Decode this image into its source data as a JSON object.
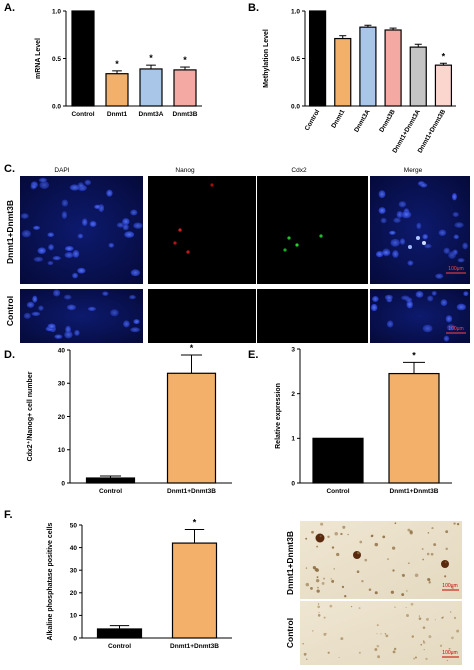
{
  "panel_labels": {
    "a": "A.",
    "b": "B.",
    "c": "C.",
    "d": "D.",
    "e": "E.",
    "f": "F."
  },
  "significance_mark": "*",
  "chart_data": [
    {
      "id": "A",
      "type": "bar",
      "ylabel": "mRNA Level",
      "ylim": [
        0,
        1.0
      ],
      "yticks": [
        0,
        0.5,
        1.0
      ],
      "categories": [
        "Control",
        "Dnmt1",
        "Dnmt3A",
        "Dnmt3B"
      ],
      "values": [
        1.0,
        0.34,
        0.39,
        0.38
      ],
      "errors": [
        0,
        0.03,
        0.04,
        0.03
      ],
      "significant": [
        false,
        true,
        true,
        true
      ],
      "colors": [
        "#000000",
        "#f2b06a",
        "#a9c6e8",
        "#f4a9a2"
      ]
    },
    {
      "id": "B",
      "type": "bar",
      "ylabel": "Methylation Level",
      "ylim": [
        0,
        1.0
      ],
      "yticks": [
        0,
        0.5,
        1.0
      ],
      "categories": [
        "Control",
        "Dnmt1",
        "Dnmt3A",
        "Dnmt3B",
        "Dnmt1+Dnmt3A",
        "Dnmt1+Dnmt3B"
      ],
      "values": [
        1.0,
        0.71,
        0.83,
        0.8,
        0.62,
        0.43
      ],
      "errors": [
        0,
        0.03,
        0.02,
        0.02,
        0.03,
        0.02
      ],
      "significant": [
        false,
        false,
        false,
        false,
        false,
        true
      ],
      "colors": [
        "#000000",
        "#f2b06a",
        "#a9c6e8",
        "#f4a9a2",
        "#c4c4c4",
        "#fbd6cf"
      ]
    },
    {
      "id": "D",
      "type": "bar",
      "ylabel": "Cdx2⁺/Nanog+ cell number",
      "ylim": [
        0,
        40
      ],
      "yticks": [
        0,
        10,
        20,
        30,
        40
      ],
      "categories": [
        "Control",
        "Dnmt1+Dnmt3B"
      ],
      "values": [
        1.5,
        33
      ],
      "errors": [
        0.6,
        5.5
      ],
      "significant": [
        false,
        true
      ],
      "colors": [
        "#000000",
        "#f2b06a"
      ]
    },
    {
      "id": "E",
      "type": "bar",
      "ylabel": "Relative expression",
      "ylim": [
        0,
        3
      ],
      "yticks": [
        0,
        1,
        2,
        3
      ],
      "categories": [
        "Control",
        "Dnmt1+Dnmt3B"
      ],
      "values": [
        1.0,
        2.45
      ],
      "errors": [
        0,
        0.25
      ],
      "significant": [
        false,
        true
      ],
      "colors": [
        "#000000",
        "#f2b06a"
      ]
    },
    {
      "id": "F",
      "type": "bar",
      "ylabel": "Alkaline phosphatase positive cells",
      "ylim": [
        0,
        50
      ],
      "yticks": [
        0,
        10,
        20,
        30,
        40,
        50
      ],
      "categories": [
        "Control",
        "Dnmt1+Dnmt3B"
      ],
      "values": [
        4,
        42
      ],
      "errors": [
        1.5,
        6
      ],
      "significant": [
        false,
        true
      ],
      "colors": [
        "#000000",
        "#f2b06a"
      ]
    }
  ],
  "micrographs_c": {
    "column_headers": [
      "DAPI",
      "Nanog",
      "Cdx2",
      "Merge"
    ],
    "row_labels": [
      "Dnmt1+Dnmt3B",
      "Control"
    ],
    "scale_bar": "100μm"
  },
  "micrographs_f": {
    "row_labels": [
      "Dnmt1+Dnmt3B",
      "Control"
    ],
    "scale_bar": "100μm"
  }
}
